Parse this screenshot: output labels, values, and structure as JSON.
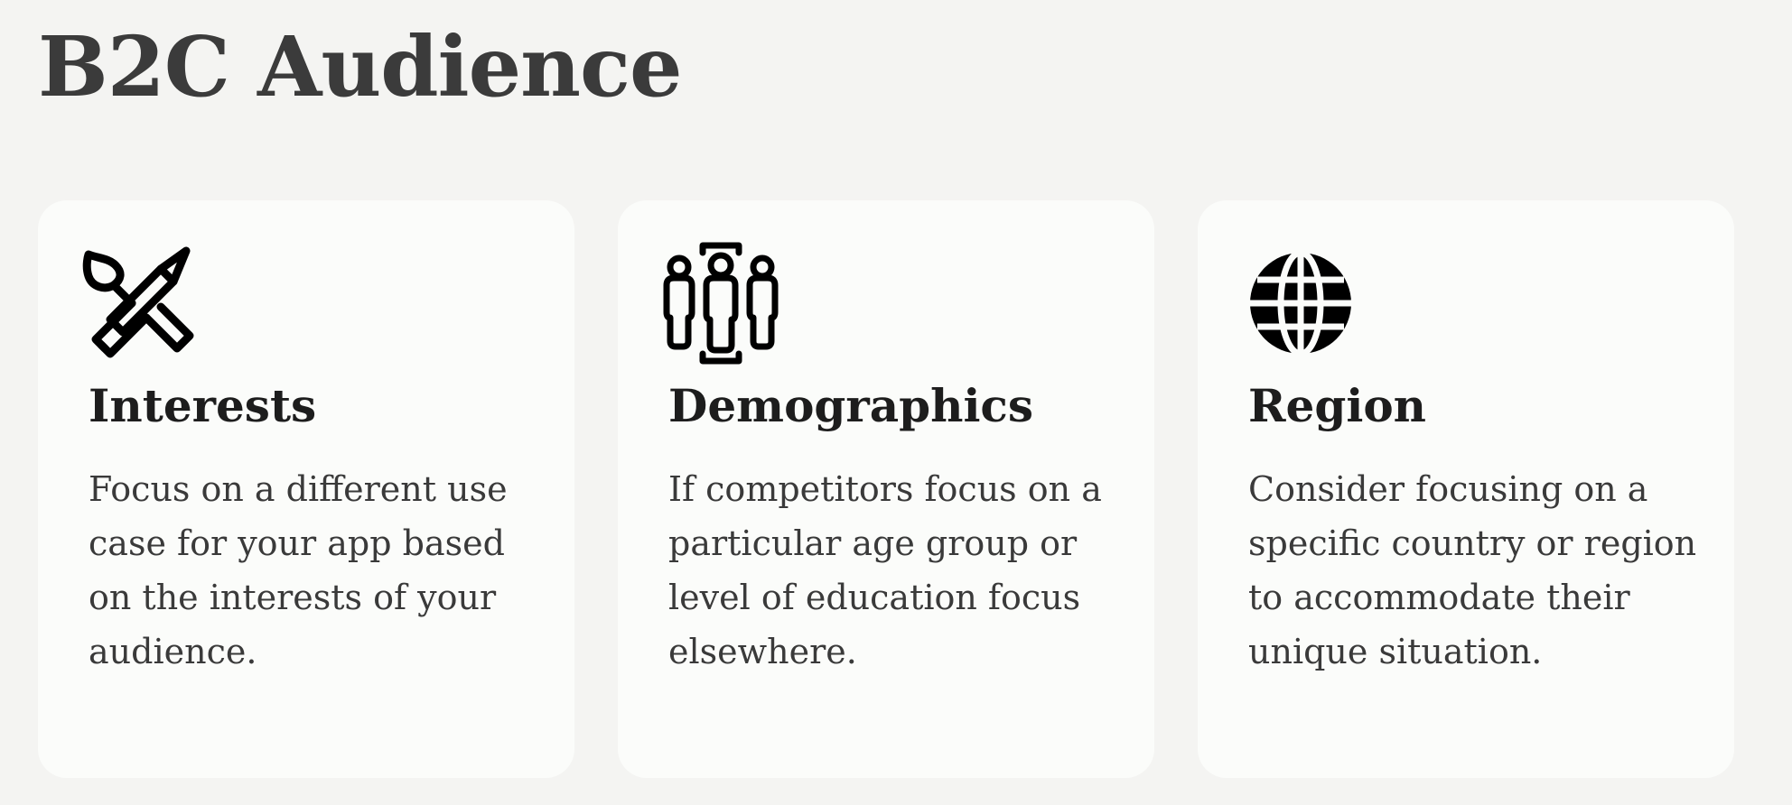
{
  "page": {
    "title": "B2C Audience"
  },
  "cards": [
    {
      "icon": "paintbrush-pencil-icon",
      "title": "Interests",
      "body": "Focus on a different use case for your app based on the interests of your audience."
    },
    {
      "icon": "people-group-icon",
      "title": "Demographics",
      "body": "If competitors focus on a particular age group or level of education focus elsewhere."
    },
    {
      "icon": "globe-icon",
      "title": "Region",
      "body": "Consider focusing on a specific country or region to accommodate their unique situation."
    }
  ],
  "colors": {
    "background": "#f4f4f2",
    "card": "#fbfcfa",
    "title": "#3b3b3b",
    "text": "#3a3a3a",
    "icon": "#000000"
  }
}
